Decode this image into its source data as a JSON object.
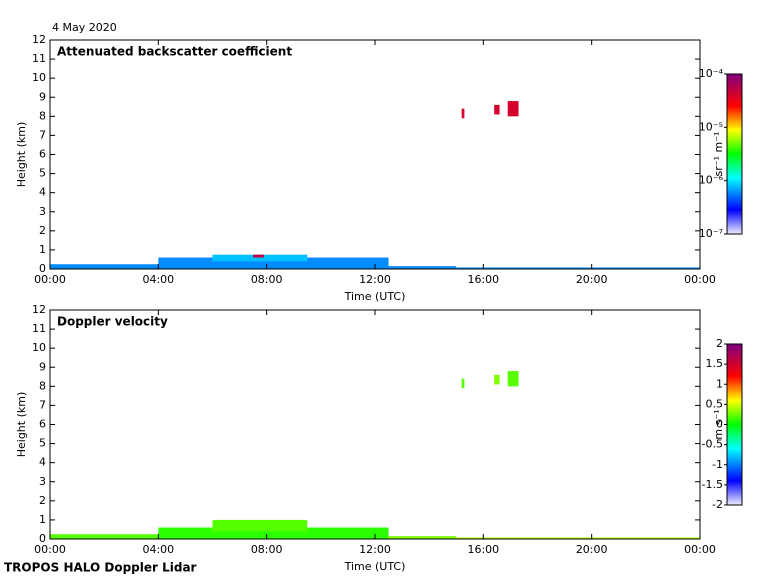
{
  "date": "4 May 2020",
  "footer": "TROPOS HALO Doppler Lidar",
  "chart_data": [
    {
      "type": "heatmap",
      "title": "Attenuated backscatter coefficient",
      "xlabel": "Time (UTC)",
      "ylabel": "Height (km)",
      "xlim": [
        0,
        24
      ],
      "xticks": [
        {
          "value": 0,
          "label": "00:00"
        },
        {
          "value": 4,
          "label": "04:00"
        },
        {
          "value": 8,
          "label": "08:00"
        },
        {
          "value": 12,
          "label": "12:00"
        },
        {
          "value": 16,
          "label": "16:00"
        },
        {
          "value": 20,
          "label": "20:00"
        },
        {
          "value": 24,
          "label": "00:00"
        }
      ],
      "ylim": [
        0,
        12
      ],
      "yticks": [
        0,
        1,
        2,
        3,
        4,
        5,
        6,
        7,
        8,
        9,
        10,
        11,
        12
      ],
      "colorbar": {
        "label": "sr⁻¹ m⁻¹",
        "log": true,
        "lim": [
          1e-07,
          0.0001
        ],
        "ticks": [
          {
            "value": 1e-07,
            "label": "10⁻⁷"
          },
          {
            "value": 1e-06,
            "label": "10⁻⁶"
          },
          {
            "value": 1e-05,
            "label": "10⁻⁵"
          },
          {
            "value": 0.0001,
            "label": "10⁻⁴"
          }
        ]
      },
      "echoes": [
        {
          "x": [
            0,
            4.3
          ],
          "y": [
            0,
            0.25
          ],
          "value": 6e-07
        },
        {
          "x": [
            4,
            12.5
          ],
          "y": [
            0,
            0.6
          ],
          "value": 6e-07
        },
        {
          "x": [
            6,
            9.5
          ],
          "y": [
            0.4,
            0.75
          ],
          "value": 8e-07
        },
        {
          "x": [
            12.5,
            15
          ],
          "y": [
            0,
            0.15
          ],
          "value": 6e-07
        },
        {
          "x": [
            15,
            24
          ],
          "y": [
            0,
            0.08
          ],
          "value": 6e-07
        },
        {
          "x": [
            7.5,
            7.9
          ],
          "y": [
            0.6,
            0.75
          ],
          "value": 5e-05
        },
        {
          "x": [
            15.2,
            15.3
          ],
          "y": [
            7.9,
            8.4
          ],
          "value": 4e-05
        },
        {
          "x": [
            16.4,
            16.6
          ],
          "y": [
            8.1,
            8.6
          ],
          "value": 4e-05
        },
        {
          "x": [
            16.9,
            17.3
          ],
          "y": [
            8,
            8.8
          ],
          "value": 4e-05
        }
      ]
    },
    {
      "type": "heatmap",
      "title": "Doppler velocity",
      "xlabel": "Time (UTC)",
      "ylabel": "Height (km)",
      "xlim": [
        0,
        24
      ],
      "xticks": [
        {
          "value": 0,
          "label": "00:00"
        },
        {
          "value": 4,
          "label": "04:00"
        },
        {
          "value": 8,
          "label": "08:00"
        },
        {
          "value": 12,
          "label": "12:00"
        },
        {
          "value": 16,
          "label": "16:00"
        },
        {
          "value": 20,
          "label": "20:00"
        },
        {
          "value": 24,
          "label": "00:00"
        }
      ],
      "ylim": [
        0,
        12
      ],
      "yticks": [
        0,
        1,
        2,
        3,
        4,
        5,
        6,
        7,
        8,
        9,
        10,
        11,
        12
      ],
      "colorbar": {
        "label": "m s⁻¹",
        "log": false,
        "lim": [
          -2,
          2
        ],
        "ticks": [
          -2,
          -1.5,
          -1,
          -0.5,
          0,
          0.5,
          1,
          1.5,
          2
        ]
      },
      "echoes": [
        {
          "x": [
            0,
            4.3
          ],
          "y": [
            0,
            0.25
          ],
          "value": 0.2
        },
        {
          "x": [
            4,
            12.5
          ],
          "y": [
            0,
            0.6
          ],
          "value": 0.1
        },
        {
          "x": [
            6,
            9.5
          ],
          "y": [
            0.4,
            1
          ],
          "value": 0.2
        },
        {
          "x": [
            12.5,
            15
          ],
          "y": [
            0,
            0.15
          ],
          "value": 0.3
        },
        {
          "x": [
            15,
            24
          ],
          "y": [
            0,
            0.08
          ],
          "value": 0.4
        },
        {
          "x": [
            15.2,
            15.3
          ],
          "y": [
            7.9,
            8.4
          ],
          "value": 0.2
        },
        {
          "x": [
            16.4,
            16.6
          ],
          "y": [
            8.1,
            8.6
          ],
          "value": 0.3
        },
        {
          "x": [
            16.9,
            17.3
          ],
          "y": [
            8,
            8.8
          ],
          "value": 0.2
        }
      ]
    }
  ]
}
